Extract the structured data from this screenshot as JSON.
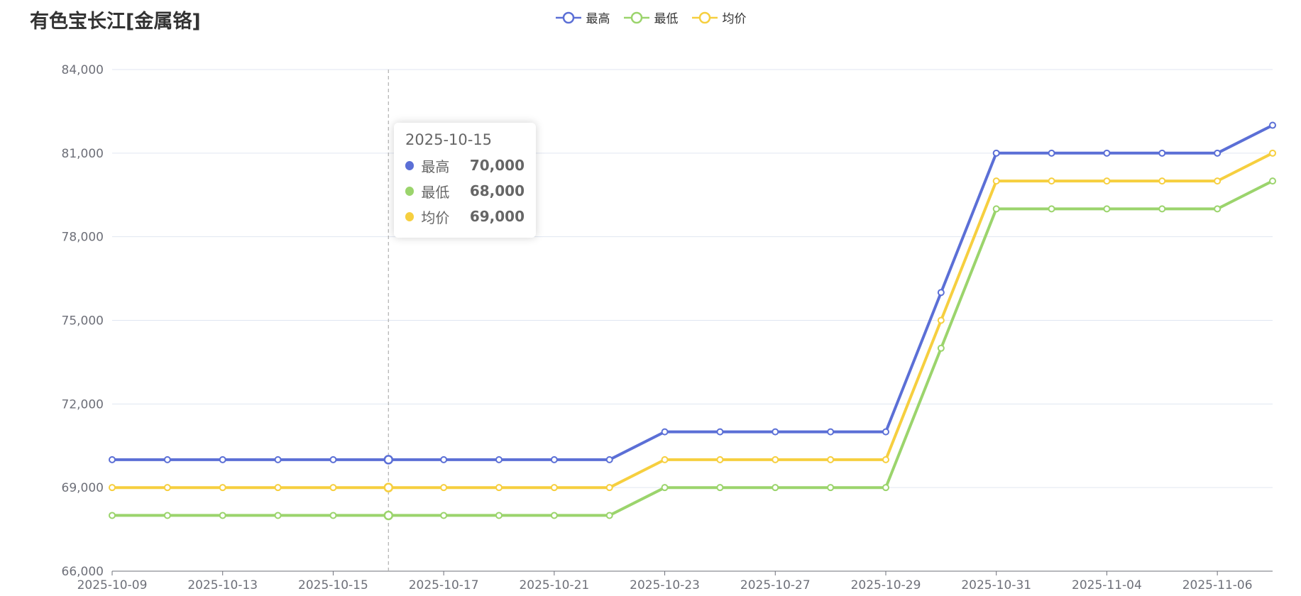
{
  "header": {
    "title": "有色宝长江[金属铬]"
  },
  "colors": {
    "max": "#5b6fd6",
    "min": "#9bd46c",
    "avg": "#f6cf3f"
  },
  "legend": [
    {
      "label": "最高",
      "color": "#5b6fd6"
    },
    {
      "label": "最低",
      "color": "#9bd46c"
    },
    {
      "label": "均价",
      "color": "#f6cf3f"
    }
  ],
  "tooltip": {
    "date": "2025-10-15",
    "rows": [
      {
        "label": "最高",
        "value": "70,000",
        "color": "#5b6fd6"
      },
      {
        "label": "最低",
        "value": "68,000",
        "color": "#9bd46c"
      },
      {
        "label": "均价",
        "value": "69,000",
        "color": "#f6cf3f"
      }
    ]
  },
  "chart_data": {
    "type": "line",
    "title": "有色宝长江[金属铬]",
    "ylim": [
      66000,
      84000
    ],
    "yticks": [
      "66,000",
      "69,000",
      "72,000",
      "75,000",
      "78,000",
      "81,000",
      "84,000"
    ],
    "grid": true,
    "legend_position": "top-center",
    "x": [
      "2025-10-09",
      "2025-10-10",
      "2025-10-13",
      "2025-10-14",
      "2025-10-15",
      "2025-10-16",
      "2025-10-17",
      "2025-10-20",
      "2025-10-21",
      "2025-10-22",
      "2025-10-23",
      "2025-10-24",
      "2025-10-27",
      "2025-10-28",
      "2025-10-29",
      "2025-10-30",
      "2025-10-31",
      "2025-11-03",
      "2025-11-04",
      "2025-11-05",
      "2025-11-06",
      "2025-11-07"
    ],
    "xtick_labels": [
      "2025-10-09",
      "2025-10-13",
      "2025-10-15",
      "2025-10-17",
      "2025-10-21",
      "2025-10-23",
      "2025-10-27",
      "2025-10-29",
      "2025-10-31",
      "2025-11-04",
      "2025-11-06"
    ],
    "highlight_x": "2025-10-16",
    "series": [
      {
        "name": "最高",
        "values": [
          70000,
          70000,
          70000,
          70000,
          70000,
          70000,
          70000,
          70000,
          70000,
          70000,
          71000,
          71000,
          71000,
          71000,
          71000,
          76000,
          81000,
          81000,
          81000,
          81000,
          81000,
          82000
        ]
      },
      {
        "name": "最低",
        "values": [
          68000,
          68000,
          68000,
          68000,
          68000,
          68000,
          68000,
          68000,
          68000,
          68000,
          69000,
          69000,
          69000,
          69000,
          69000,
          74000,
          79000,
          79000,
          79000,
          79000,
          79000,
          80000
        ]
      },
      {
        "name": "均价",
        "values": [
          69000,
          69000,
          69000,
          69000,
          69000,
          69000,
          69000,
          69000,
          69000,
          69000,
          70000,
          70000,
          70000,
          70000,
          70000,
          75000,
          80000,
          80000,
          80000,
          80000,
          80000,
          81000
        ]
      }
    ]
  }
}
